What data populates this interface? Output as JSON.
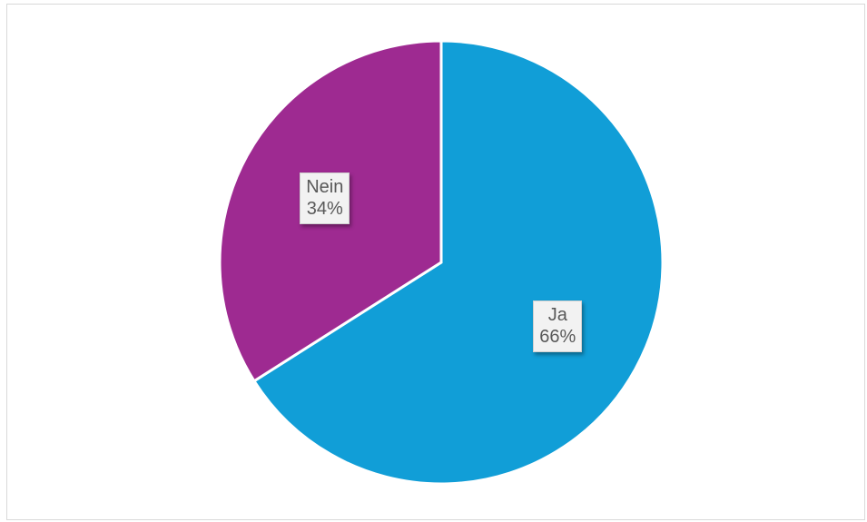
{
  "chart_data": {
    "type": "pie",
    "title": "",
    "categories": [
      "Ja",
      "Nein"
    ],
    "values": [
      66,
      34
    ],
    "value_labels": [
      "66%",
      "34%"
    ],
    "colors": [
      "#119ed7",
      "#9e2a91"
    ],
    "start_angle_deg": 0,
    "direction": "clockwise",
    "legend": "none"
  }
}
